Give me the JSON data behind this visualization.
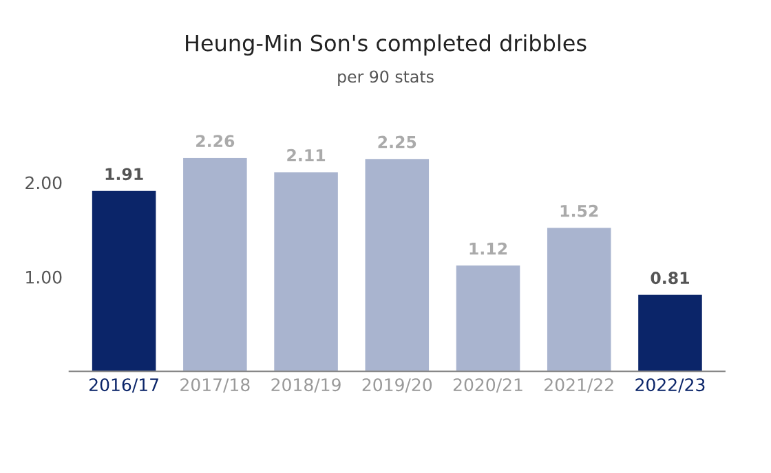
{
  "chart_data": {
    "type": "bar",
    "title": "Heung-Min Son's completed dribbles",
    "subtitle": "per 90 stats",
    "categories": [
      "2016/17",
      "2017/18",
      "2018/19",
      "2019/20",
      "2020/21",
      "2021/22",
      "2022/23"
    ],
    "values": [
      1.91,
      2.26,
      2.11,
      2.25,
      1.12,
      1.52,
      0.81
    ],
    "colors": [
      "#0b2569",
      "#a9b4cf",
      "#a9b4cf",
      "#a9b4cf",
      "#a9b4cf",
      "#a9b4cf",
      "#0b2569"
    ],
    "ylim": [
      0,
      2.26
    ],
    "yticks": [
      {
        "value": 1,
        "label": "1.00"
      },
      {
        "value": 2,
        "label": "2.00"
      }
    ],
    "data_labels": true,
    "grid": false,
    "legend": false
  }
}
